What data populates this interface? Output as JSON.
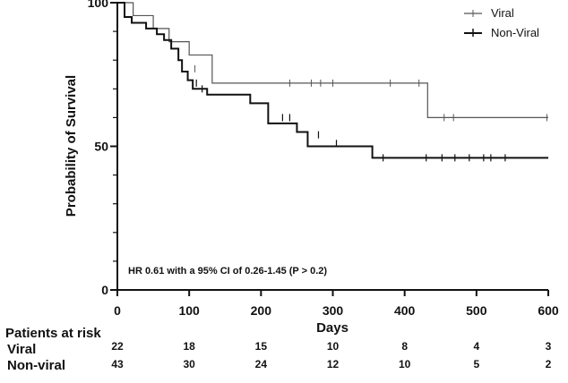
{
  "chart_data": {
    "type": "line",
    "subtype": "kaplan-meier",
    "xlabel": "Days",
    "ylabel": "Probability of Survival",
    "xlim": [
      0,
      600
    ],
    "ylim": [
      0,
      100
    ],
    "xticks": [
      "0",
      "100",
      "200",
      "300",
      "400",
      "500",
      "600"
    ],
    "yticks_major": [
      "0",
      "50",
      "100"
    ],
    "grid": false,
    "legend_position": "top-right",
    "annotation": "HR 0.61 with a 95% CI of 0.26-1.45 (P > 0.2)",
    "series": [
      {
        "name": "Viral",
        "color": "#555555",
        "steps": [
          [
            0,
            100
          ],
          [
            22,
            95.5
          ],
          [
            50,
            91
          ],
          [
            72,
            86.4
          ],
          [
            100,
            81.8
          ],
          [
            132,
            72
          ],
          [
            432,
            72
          ],
          [
            432,
            60
          ],
          [
            600,
            60
          ]
        ],
        "censored": [
          [
            108,
            77
          ],
          [
            240,
            72
          ],
          [
            270,
            72
          ],
          [
            283,
            72
          ],
          [
            300,
            72
          ],
          [
            380,
            72
          ],
          [
            420,
            72
          ],
          [
            455,
            60
          ],
          [
            468,
            60
          ],
          [
            598,
            60
          ]
        ]
      },
      {
        "name": "Non-Viral",
        "color": "#111111",
        "steps": [
          [
            0,
            100
          ],
          [
            10,
            95
          ],
          [
            20,
            93
          ],
          [
            40,
            91
          ],
          [
            55,
            89
          ],
          [
            65,
            87
          ],
          [
            75,
            84
          ],
          [
            85,
            80
          ],
          [
            90,
            76
          ],
          [
            98,
            73
          ],
          [
            105,
            70
          ],
          [
            125,
            68
          ],
          [
            185,
            65
          ],
          [
            210,
            58
          ],
          [
            250,
            55
          ],
          [
            265,
            50
          ],
          [
            355,
            50
          ],
          [
            355,
            46
          ],
          [
            600,
            46
          ]
        ],
        "censored": [
          [
            110,
            72
          ],
          [
            118,
            70
          ],
          [
            230,
            60
          ],
          [
            240,
            60
          ],
          [
            280,
            54
          ],
          [
            305,
            51
          ],
          [
            370,
            46
          ],
          [
            430,
            46
          ],
          [
            452,
            46
          ],
          [
            470,
            46
          ],
          [
            490,
            46
          ],
          [
            510,
            46
          ],
          [
            520,
            46
          ],
          [
            540,
            46
          ]
        ]
      }
    ]
  },
  "risk_table": {
    "title": "Patients at risk",
    "rows": [
      {
        "label": "Viral",
        "values": [
          "22",
          "18",
          "15",
          "10",
          "8",
          "4",
          "3"
        ]
      },
      {
        "label": "Non-viral",
        "values": [
          "43",
          "30",
          "24",
          "12",
          "10",
          "5",
          "2"
        ]
      }
    ]
  }
}
